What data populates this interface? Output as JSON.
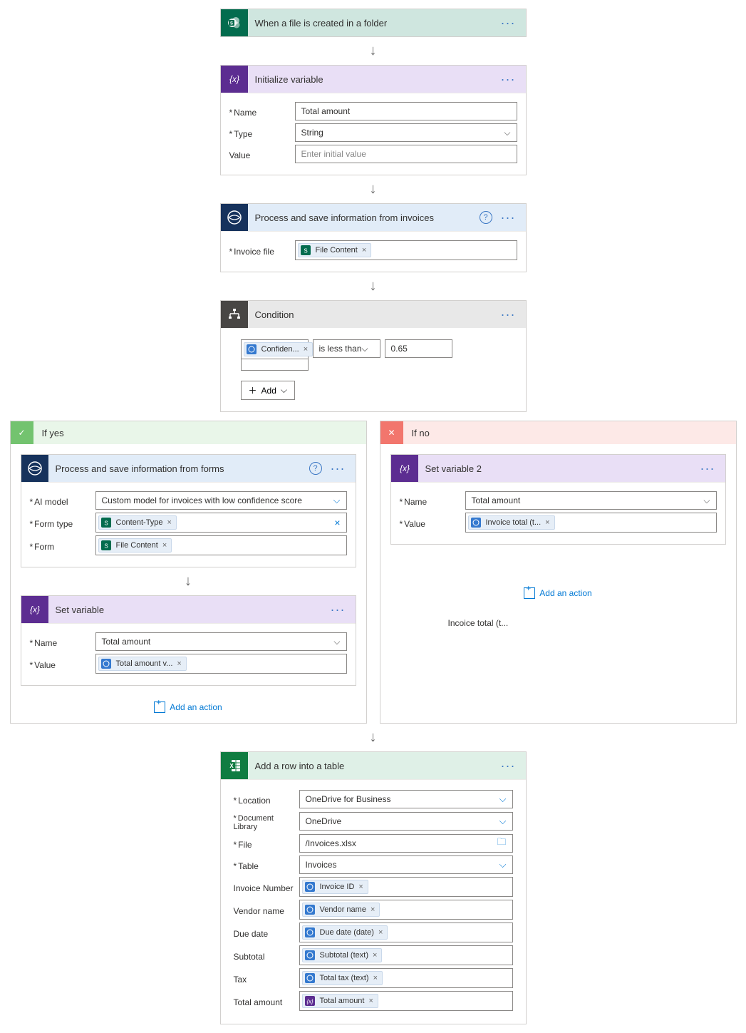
{
  "colors": {
    "sp_bg": "#cfe6df",
    "sp_icon": "#036c4e",
    "var_bg": "#e9dff6",
    "var_icon": "#5c2d91",
    "ai_bg": "#e1ecf8",
    "ai_icon": "#16325c",
    "cond_bg": "#e8e8e8",
    "cond_icon": "#484644",
    "excel_bg": "#dff0e7",
    "excel_icon": "#107c41",
    "yes": "#73c36f",
    "no": "#f2766d",
    "token_sp": "#036c4e",
    "token_ai": "#3479cf",
    "token_var": "#5c2d91",
    "link": "#0078d4",
    "border": "#d2d0ce",
    "text": "#323130"
  },
  "trigger": {
    "title": "When a file is created in a folder"
  },
  "initVar": {
    "title": "Initialize variable",
    "nameLabel": "Name",
    "nameVal": "Total amount",
    "typeLabel": "Type",
    "typeVal": "String",
    "valueLabel": "Value",
    "valuePh": "Enter initial value"
  },
  "aiInvoices": {
    "title": "Process and save information from invoices",
    "fileLabel": "Invoice file",
    "token": "File Content"
  },
  "condition": {
    "title": "Condition",
    "token": "Confiden...",
    "op": "is less than",
    "val": "0.65",
    "add": "Add"
  },
  "ifYes": {
    "label": "If yes",
    "forms": {
      "title": "Process and save information from forms",
      "modelLabel": "AI model",
      "modelVal": "Custom model for invoices with low confidence score",
      "ftypeLabel": "Form type",
      "ftypeToken": "Content-Type",
      "formLabel": "Form",
      "formToken": "File Content"
    },
    "setVar": {
      "title": "Set variable",
      "nameLabel": "Name",
      "nameVal": "Total amount",
      "valueLabel": "Value",
      "valueToken": "Total amount v..."
    },
    "addAction": "Add an action"
  },
  "ifNo": {
    "label": "If no",
    "setVar": {
      "title": "Set variable 2",
      "nameLabel": "Name",
      "nameVal": "Total amount",
      "valueLabel": "Value",
      "valueToken": "Invoice total (t..."
    },
    "addAction": "Add an action"
  },
  "floatingNote": "Incoice total (t...",
  "excel": {
    "title": "Add a row into a table",
    "locationLabel": "Location",
    "locationVal": "OneDrive for Business",
    "libLabel": "Document Library",
    "libVal": "OneDrive",
    "fileLabel": "File",
    "fileVal": "/Invoices.xlsx",
    "tableLabel": "Table",
    "tableVal": "Invoices",
    "rows": [
      {
        "label": "Invoice Number",
        "token": "Invoice ID",
        "iconColor": "#3479cf"
      },
      {
        "label": "Vendor name",
        "token": "Vendor name",
        "iconColor": "#3479cf"
      },
      {
        "label": "Due date",
        "token": "Due date (date)",
        "iconColor": "#3479cf"
      },
      {
        "label": "Subtotal",
        "token": "Subtotal (text)",
        "iconColor": "#3479cf"
      },
      {
        "label": "Tax",
        "token": "Total tax (text)",
        "iconColor": "#3479cf"
      },
      {
        "label": "Total amount",
        "token": "Total amount",
        "iconColor": "#5c2d91"
      }
    ]
  }
}
